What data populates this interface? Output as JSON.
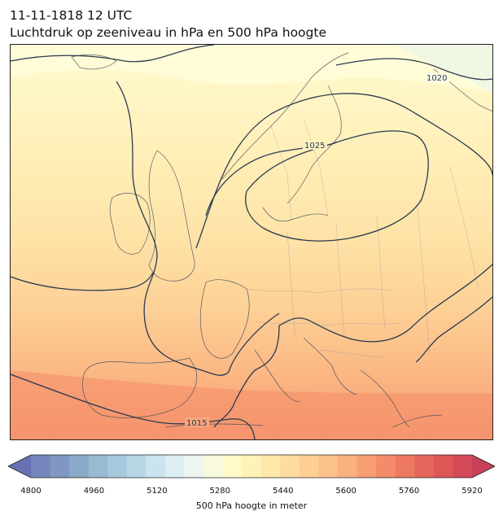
{
  "title": {
    "line1": "11-11-1818 12 UTC",
    "line2": "Luchtdruk op zeeniveau in hPa en 500 hPa hoogte"
  },
  "map": {
    "region": "Europe",
    "fill_field": "500 hPa geopotential height (m)",
    "contour_field": "sea level pressure (hPa)",
    "isobar_labels": [
      "1020",
      "1025",
      "1015"
    ]
  },
  "colorbar": {
    "label": "500 hPa hoogte in meter",
    "ticks": [
      "4800",
      "4960",
      "5120",
      "5280",
      "5440",
      "5600",
      "5760",
      "5920"
    ],
    "min": 4760,
    "max": 5960,
    "step": 40,
    "extend": "both",
    "colors": [
      "#6772b4",
      "#7385bb",
      "#7f97c2",
      "#8ba9c8",
      "#98bbd1",
      "#a8c9dd",
      "#b9d6e6",
      "#cbe3ee",
      "#ddeef4",
      "#ecf6ef",
      "#f7fadc",
      "#fffac8",
      "#fff2b8",
      "#ffe8aa",
      "#fedc9f",
      "#fdcf95",
      "#fcc08a",
      "#fab07f",
      "#f79f73",
      "#f38c69",
      "#ee7961",
      "#e6665c",
      "#dd5658",
      "#d34957",
      "#c84058"
    ]
  }
}
